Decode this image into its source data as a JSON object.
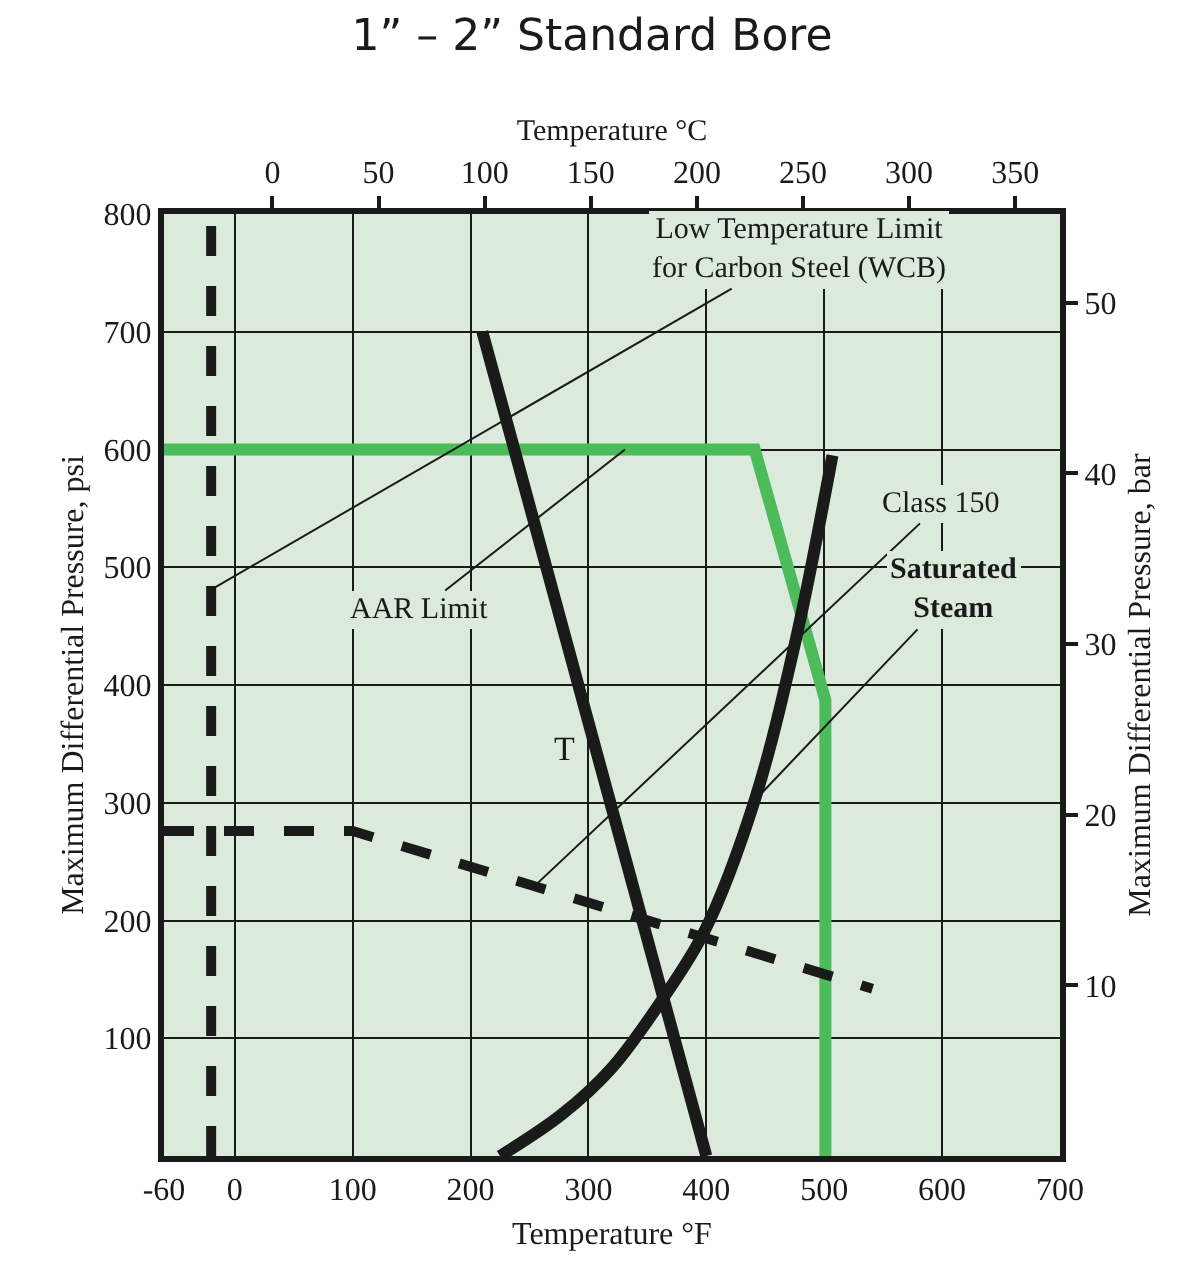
{
  "chart_data": {
    "type": "line",
    "title": "1” – 2” Standard Bore",
    "xlabel": "Temperature °F",
    "ylabel": "Maximum Differential Pressure, psi",
    "x2label": "Temperature °C",
    "y2label": "Maximum Differential Pressure, bar",
    "xlim": [
      -60,
      700
    ],
    "xticks": [
      -60,
      0,
      100,
      200,
      300,
      400,
      500,
      600,
      700
    ],
    "ylim": [
      0,
      800
    ],
    "yticks": [
      {
        "value": 0,
        "label": null
      },
      100,
      200,
      300,
      400,
      500,
      600,
      700,
      800
    ],
    "x2lim": [
      -51.1,
      371.1
    ],
    "x2ticks": [
      0,
      50,
      100,
      150,
      200,
      250,
      300,
      350
    ],
    "y2lim": [
      0,
      55.2
    ],
    "y2ticks": [
      10,
      20,
      30,
      40,
      50
    ],
    "grid": true,
    "marker": "none",
    "series": [
      {
        "color": "#4cbb5a",
        "line_style": "solid",
        "x": [
          -60,
          441,
          501,
          501
        ],
        "values": [
          600,
          600,
          387,
          0
        ]
      },
      {
        "color": "#1a1a1a",
        "line_style": "solid",
        "x": [
          210,
          400
        ],
        "values": [
          700,
          0
        ]
      },
      {
        "color": "#1a1a1a",
        "line_style": "solid",
        "x": [
          225,
          277,
          320,
          362,
          399,
          441,
          476,
          507
        ],
        "values": [
          0,
          35,
          75,
          132,
          192,
          302,
          439,
          595
        ]
      },
      {
        "color": "#1a1a1a",
        "line_style": "dashed",
        "x": [
          -60,
          100,
          541
        ],
        "values": [
          276,
          276,
          142
        ]
      }
    ],
    "ref_lines": [
      {
        "axis": "x",
        "value": -20,
        "color": "#1a1a1a",
        "line_style": "dashed"
      }
    ],
    "annotations": [
      {
        "text": "Low Temperature Limit\nfor Carbon Steel (WCB)",
        "x": -20,
        "y": 481
      },
      {
        "text": "AAR Limit",
        "x": 331,
        "y": 600
      },
      {
        "text": "Class 150",
        "x": 254,
        "y": 229
      },
      {
        "text": "Saturated\nSteam",
        "x": 441,
        "y": 302
      },
      {
        "text": "T",
        "x": 280,
        "y": 345
      }
    ]
  }
}
